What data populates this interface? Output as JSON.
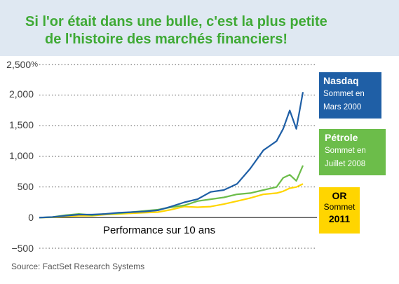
{
  "headline": {
    "line1": "Si l'or était dans une bulle, c'est la plus petite",
    "line2": "de l'histoire des marchés financiers!"
  },
  "y_ticks": [
    "2,500",
    "2,000",
    "1,500",
    "1,000",
    "500",
    "0",
    "−500"
  ],
  "y_unit": "%",
  "caption": "Performance sur 10 ans",
  "source": "Source: FactSet Research Systems",
  "callouts": {
    "nasdaq": {
      "name": "Nasdaq",
      "line1": "Sommet en",
      "line2": "Mars 2000"
    },
    "petrole": {
      "name": "Pétrole",
      "line1": "Sommet en",
      "line2": "Juillet 2008"
    },
    "or": {
      "name": "OR",
      "line1": "Sommet",
      "year": "2011"
    }
  },
  "colors": {
    "nasdaq": "#1f5fa6",
    "petrole": "#6cbd4a",
    "or": "#ffd500",
    "headline_text": "#3faa35",
    "headline_bg": "#dfe8f2"
  },
  "chart_data": {
    "type": "line",
    "ylabel": "",
    "yunit": "%",
    "ylim": [
      -500,
      2500
    ],
    "yticks": [
      -500,
      0,
      500,
      1000,
      1500,
      2000,
      2500
    ],
    "grid": "horizontal dotted",
    "x": [
      0,
      0.5,
      1,
      1.5,
      2,
      2.5,
      3,
      3.5,
      4,
      4.5,
      5,
      5.5,
      6,
      6.5,
      7,
      7.5,
      8,
      8.5,
      9,
      9.25,
      9.5,
      9.75,
      10
    ],
    "series": [
      {
        "name": "Nasdaq",
        "color": "#1f5fa6",
        "values": [
          0,
          10,
          30,
          50,
          50,
          60,
          80,
          90,
          100,
          120,
          180,
          250,
          300,
          420,
          450,
          550,
          800,
          1100,
          1250,
          1450,
          1750,
          1450,
          2050
        ]
      },
      {
        "name": "Pétrole",
        "color": "#6cbd4a",
        "values": [
          0,
          10,
          40,
          60,
          40,
          60,
          70,
          90,
          110,
          130,
          170,
          200,
          270,
          300,
          330,
          380,
          400,
          450,
          500,
          650,
          700,
          600,
          850
        ]
      },
      {
        "name": "OR",
        "color": "#ffd500",
        "values": [
          0,
          5,
          20,
          30,
          30,
          50,
          60,
          70,
          80,
          90,
          130,
          180,
          170,
          180,
          220,
          270,
          320,
          380,
          400,
          430,
          480,
          500,
          550
        ]
      }
    ]
  }
}
